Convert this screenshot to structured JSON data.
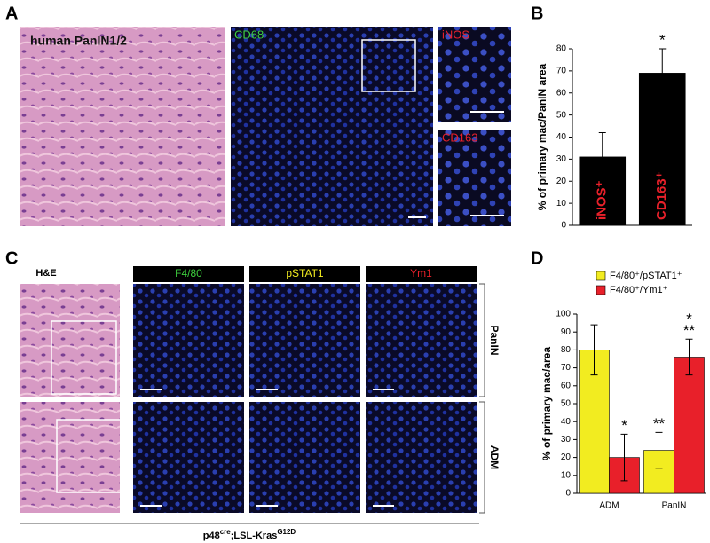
{
  "panel_labels": [
    "A",
    "B",
    "C",
    "D"
  ],
  "panel_a": {
    "he_label": "human PanIN1/2",
    "stains": [
      "CD68",
      "iNOS",
      "CD163"
    ]
  },
  "panel_c": {
    "he_label": "H&E",
    "stains": [
      "F4/80",
      "pSTAT1",
      "Ym1"
    ],
    "rows": [
      "PanIN",
      "ADM"
    ],
    "genotype": [
      "p48",
      "cre",
      ";LSL-Kras",
      "G12D"
    ]
  },
  "chart_data": [
    {
      "type": "bar",
      "ylabel": "% of primary mac/PanIN area",
      "categories": [
        "iNOS⁺",
        "CD163⁺"
      ],
      "category_colors": [
        "#e8202a",
        "#e8202a"
      ],
      "category_labels": "inside",
      "series": [
        {
          "color": "#000000",
          "values": [
            31,
            69
          ],
          "errors": [
            11,
            11
          ],
          "significance": [
            null,
            [
              "*"
            ]
          ]
        }
      ],
      "ylim": [
        0,
        80
      ],
      "yticks": [
        0,
        10,
        20,
        30,
        40,
        50,
        60,
        70,
        80
      ]
    },
    {
      "type": "bar",
      "ylabel": "% of primary mac/area",
      "categories": [
        "ADM",
        "PanIN"
      ],
      "category_labels": "below",
      "legend": "top",
      "series": [
        {
          "name": "F4/80⁺/pSTAT1⁺",
          "color": "#f2ec20",
          "values": [
            80,
            24
          ],
          "errors": [
            14,
            10
          ],
          "significance": [
            null,
            [
              "**"
            ]
          ]
        },
        {
          "name": "F4/80⁺/Ym1⁺",
          "color": "#e8202a",
          "values": [
            20,
            76
          ],
          "errors": [
            13,
            10
          ],
          "significance": [
            [
              "*"
            ],
            [
              "*",
              "**"
            ]
          ]
        }
      ],
      "ylim": [
        0,
        100
      ],
      "yticks": [
        0,
        10,
        20,
        30,
        40,
        50,
        60,
        70,
        80,
        90,
        100
      ]
    }
  ]
}
